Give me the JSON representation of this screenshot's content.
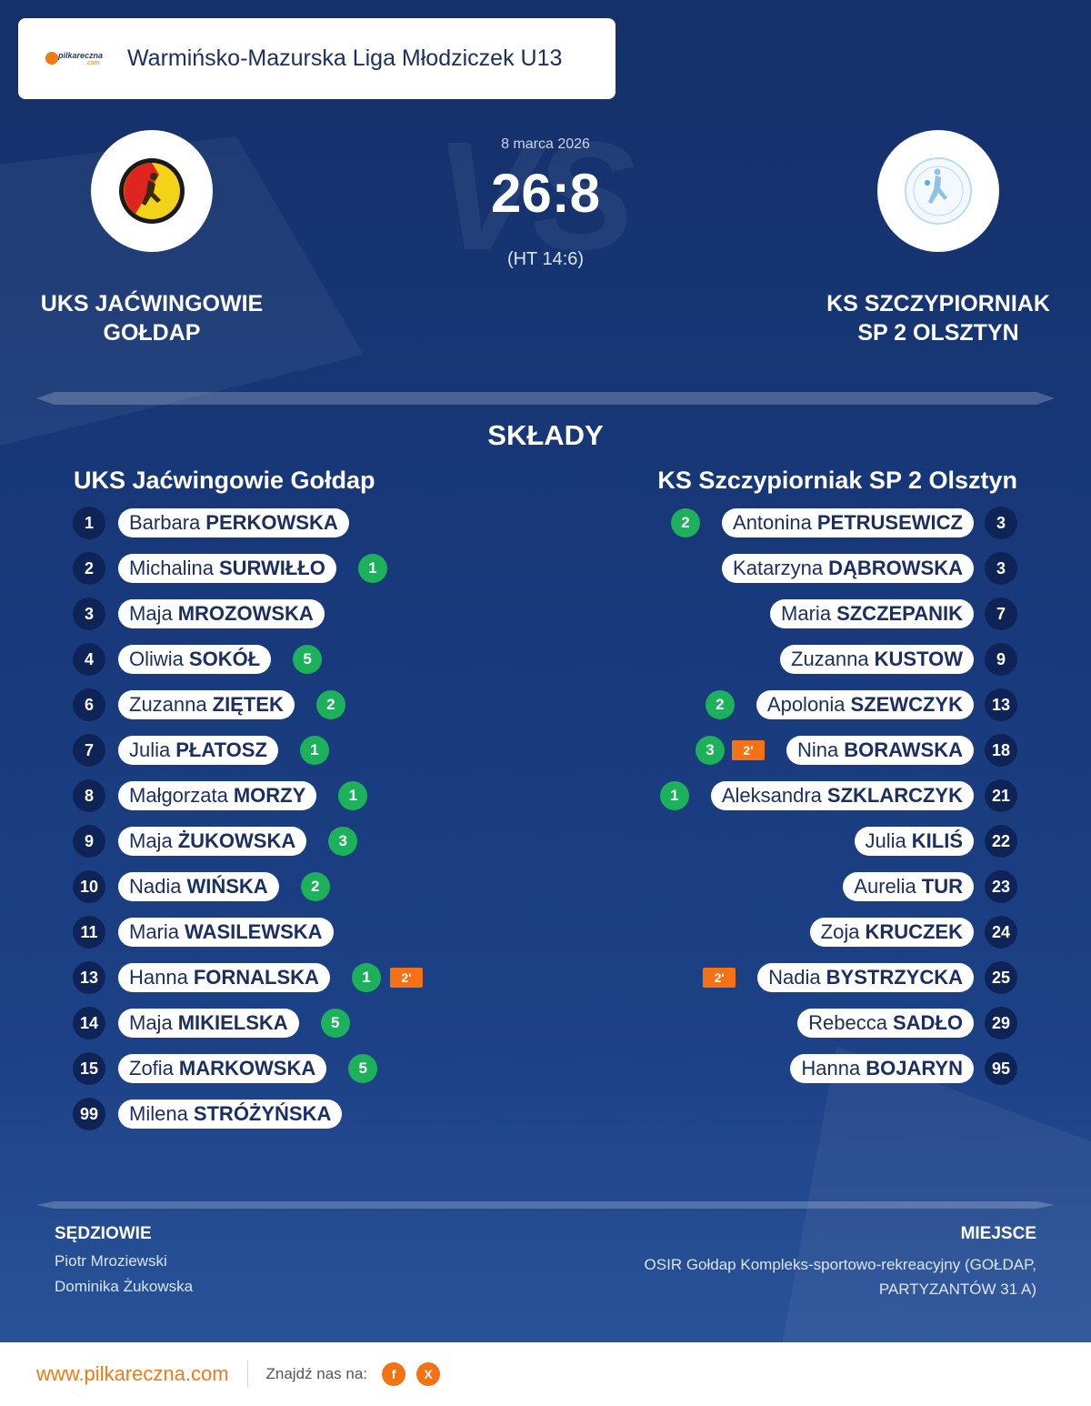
{
  "header": {
    "logo_text": "pilkareczna",
    "logo_sub": ".com",
    "league": "Warmińsko-Mazurska Liga Młodziczek U13"
  },
  "match": {
    "date": "8 marca 2026",
    "score": "26:8",
    "halftime": "(HT 14:6)",
    "vs_text": "VS"
  },
  "home": {
    "name_line1": "UKS JAĆWINGOWIE",
    "name_line2": "GOŁDAP",
    "title": "UKS Jaćwingowie Gołdap",
    "players": [
      {
        "num": "1",
        "first": "Barbara",
        "last": "PERKOWSKA"
      },
      {
        "num": "2",
        "first": "Michalina",
        "last": "SURWIŁŁO",
        "goals": "1"
      },
      {
        "num": "3",
        "first": "Maja",
        "last": "MROZOWSKA"
      },
      {
        "num": "4",
        "first": "Oliwia",
        "last": "SOKÓŁ",
        "goals": "5"
      },
      {
        "num": "6",
        "first": "Zuzanna",
        "last": "ZIĘTEK",
        "goals": "2"
      },
      {
        "num": "7",
        "first": "Julia",
        "last": "PŁATOSZ",
        "goals": "1"
      },
      {
        "num": "8",
        "first": "Małgorzata",
        "last": "MORZY",
        "goals": "1"
      },
      {
        "num": "9",
        "first": "Maja",
        "last": "ŻUKOWSKA",
        "goals": "3"
      },
      {
        "num": "10",
        "first": "Nadia",
        "last": "WIŃSKA",
        "goals": "2"
      },
      {
        "num": "11",
        "first": "Maria",
        "last": "WASILEWSKA"
      },
      {
        "num": "13",
        "first": "Hanna",
        "last": "FORNALSKA",
        "goals": "1",
        "penalty": "2'"
      },
      {
        "num": "14",
        "first": "Maja",
        "last": "MIKIELSKA",
        "goals": "5"
      },
      {
        "num": "15",
        "first": "Zofia",
        "last": "MARKOWSKA",
        "goals": "5"
      },
      {
        "num": "99",
        "first": "Milena",
        "last": "STRÓŻYŃSKA"
      }
    ]
  },
  "away": {
    "name_line1": "KS SZCZYPIORNIAK",
    "name_line2": "SP 2 OLSZTYN",
    "title": "KS Szczypiorniak SP 2 Olsztyn",
    "players": [
      {
        "num": "3",
        "first": "Antonina",
        "last": "PETRUSEWICZ",
        "goals": "2"
      },
      {
        "num": "3",
        "first": "Katarzyna",
        "last": "DĄBROWSKA"
      },
      {
        "num": "7",
        "first": "Maria",
        "last": "SZCZEPANIK"
      },
      {
        "num": "9",
        "first": "Zuzanna",
        "last": "KUSTOW"
      },
      {
        "num": "13",
        "first": "Apolonia",
        "last": "SZEWCZYK",
        "goals": "2"
      },
      {
        "num": "18",
        "first": "Nina",
        "last": "BORAWSKA",
        "goals": "3",
        "penalty": "2'"
      },
      {
        "num": "21",
        "first": "Aleksandra",
        "last": "SZKLARCZYK",
        "goals": "1"
      },
      {
        "num": "22",
        "first": "Julia",
        "last": "KILIŚ"
      },
      {
        "num": "23",
        "first": "Aurelia",
        "last": "TUR"
      },
      {
        "num": "24",
        "first": "Zoja",
        "last": "KRUCZEK"
      },
      {
        "num": "25",
        "first": "Nadia",
        "last": "BYSTRZYCKA",
        "penalty": "2'"
      },
      {
        "num": "29",
        "first": "Rebecca",
        "last": "SADŁO"
      },
      {
        "num": "95",
        "first": "Hanna",
        "last": "BOJARYN"
      }
    ]
  },
  "lineups_title": "SKŁADY",
  "referees": {
    "label": "SĘDZIOWIE",
    "names": [
      "Piotr Mroziewski",
      "Dominika Żukowska"
    ]
  },
  "venue": {
    "label": "MIEJSCE",
    "text": "OSIR Gołdap Kompleks-sportowo-rekreacyjny (GOŁDAP, PARTYZANTÓW 31 A)"
  },
  "footer": {
    "site": "www.pilkareczna.com",
    "find_us": "Znajdź nas na:",
    "facebook_icon": "f",
    "x_icon": "X"
  },
  "colors": {
    "goal": "#1cb15a",
    "penalty": "#f47115",
    "number_circle": "#0f2456",
    "background": "#183a7c"
  }
}
